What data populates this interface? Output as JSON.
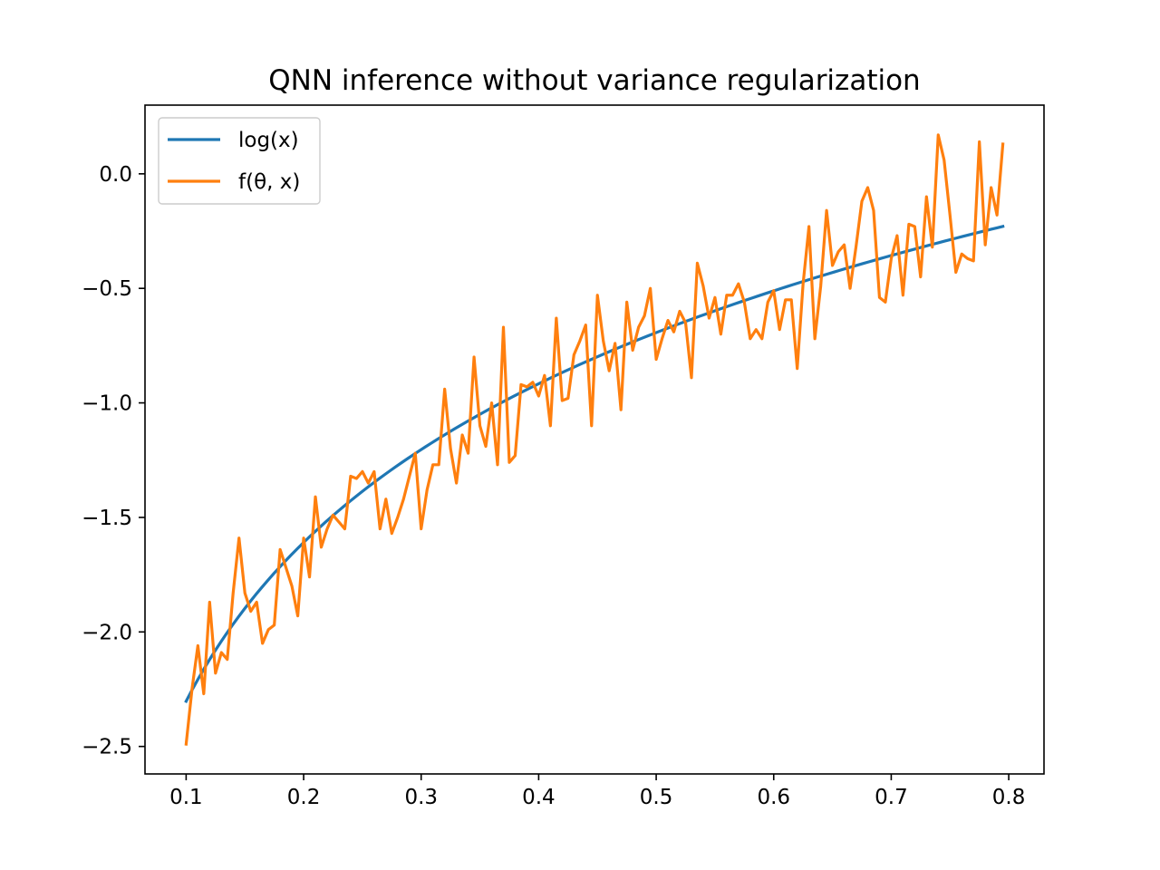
{
  "chart_data": {
    "type": "line",
    "title": "QNN inference without variance regularization",
    "xlabel": "",
    "ylabel": "",
    "xlim": [
      0.065,
      0.83
    ],
    "ylim": [
      -2.62,
      0.3
    ],
    "grid": false,
    "legend_position": "upper-left",
    "x_ticks": [
      {
        "value": 0.1,
        "label": "0.1"
      },
      {
        "value": 0.2,
        "label": "0.2"
      },
      {
        "value": 0.3,
        "label": "0.3"
      },
      {
        "value": 0.4,
        "label": "0.4"
      },
      {
        "value": 0.5,
        "label": "0.5"
      },
      {
        "value": 0.6,
        "label": "0.6"
      },
      {
        "value": 0.7,
        "label": "0.7"
      },
      {
        "value": 0.8,
        "label": "0.8"
      }
    ],
    "y_ticks": [
      {
        "value": 0.0,
        "label": "0.0"
      },
      {
        "value": -0.5,
        "label": "−0.5"
      },
      {
        "value": -1.0,
        "label": "−1.0"
      },
      {
        "value": -1.5,
        "label": "−1.5"
      },
      {
        "value": -2.0,
        "label": "−2.0"
      },
      {
        "value": -2.5,
        "label": "−2.5"
      }
    ],
    "series": [
      {
        "name": "log(x)",
        "color": "#1f77b4",
        "function": "log",
        "x_range": [
          0.1,
          0.795
        ]
      },
      {
        "name": "f(θ, x)",
        "color": "#ff7f0e",
        "x": [
          0.1,
          0.105,
          0.11,
          0.115,
          0.12,
          0.125,
          0.13,
          0.135,
          0.14,
          0.145,
          0.15,
          0.155,
          0.16,
          0.165,
          0.17,
          0.175,
          0.18,
          0.185,
          0.19,
          0.195,
          0.2,
          0.205,
          0.21,
          0.215,
          0.22,
          0.225,
          0.23,
          0.235,
          0.24,
          0.245,
          0.25,
          0.255,
          0.26,
          0.265,
          0.27,
          0.275,
          0.28,
          0.285,
          0.29,
          0.295,
          0.3,
          0.305,
          0.31,
          0.315,
          0.32,
          0.325,
          0.33,
          0.335,
          0.34,
          0.345,
          0.35,
          0.355,
          0.36,
          0.365,
          0.37,
          0.375,
          0.38,
          0.385,
          0.39,
          0.395,
          0.4,
          0.405,
          0.41,
          0.415,
          0.42,
          0.425,
          0.43,
          0.435,
          0.44,
          0.445,
          0.45,
          0.455,
          0.46,
          0.465,
          0.47,
          0.475,
          0.48,
          0.485,
          0.49,
          0.495,
          0.5,
          0.505,
          0.51,
          0.515,
          0.52,
          0.525,
          0.53,
          0.535,
          0.54,
          0.545,
          0.55,
          0.555,
          0.56,
          0.565,
          0.57,
          0.575,
          0.58,
          0.585,
          0.59,
          0.595,
          0.6,
          0.605,
          0.61,
          0.615,
          0.62,
          0.625,
          0.63,
          0.635,
          0.64,
          0.645,
          0.65,
          0.655,
          0.66,
          0.665,
          0.67,
          0.675,
          0.68,
          0.685,
          0.69,
          0.695,
          0.7,
          0.705,
          0.71,
          0.715,
          0.72,
          0.725,
          0.73,
          0.735,
          0.74,
          0.745,
          0.75,
          0.755,
          0.76,
          0.765,
          0.77,
          0.775,
          0.78,
          0.785,
          0.79,
          0.795
        ],
        "y": [
          -2.49,
          -2.25,
          -2.06,
          -2.27,
          -1.87,
          -2.18,
          -2.09,
          -2.12,
          -1.83,
          -1.59,
          -1.83,
          -1.91,
          -1.87,
          -2.05,
          -1.99,
          -1.97,
          -1.64,
          -1.72,
          -1.8,
          -1.93,
          -1.59,
          -1.76,
          -1.41,
          -1.63,
          -1.55,
          -1.49,
          -1.52,
          -1.55,
          -1.32,
          -1.33,
          -1.3,
          -1.35,
          -1.3,
          -1.55,
          -1.42,
          -1.57,
          -1.5,
          -1.42,
          -1.32,
          -1.22,
          -1.55,
          -1.38,
          -1.27,
          -1.27,
          -0.94,
          -1.2,
          -1.35,
          -1.14,
          -1.22,
          -0.8,
          -1.1,
          -1.19,
          -1.0,
          -1.27,
          -0.67,
          -1.26,
          -1.23,
          -0.92,
          -0.93,
          -0.91,
          -0.97,
          -0.88,
          -1.1,
          -0.63,
          -0.99,
          -0.98,
          -0.79,
          -0.73,
          -0.66,
          -1.1,
          -0.53,
          -0.73,
          -0.86,
          -0.74,
          -1.03,
          -0.56,
          -0.77,
          -0.67,
          -0.62,
          -0.5,
          -0.81,
          -0.72,
          -0.64,
          -0.69,
          -0.6,
          -0.65,
          -0.89,
          -0.39,
          -0.49,
          -0.63,
          -0.54,
          -0.7,
          -0.53,
          -0.53,
          -0.48,
          -0.56,
          -0.72,
          -0.68,
          -0.72,
          -0.56,
          -0.51,
          -0.68,
          -0.55,
          -0.55,
          -0.85,
          -0.48,
          -0.23,
          -0.72,
          -0.49,
          -0.16,
          -0.4,
          -0.34,
          -0.31,
          -0.5,
          -0.32,
          -0.12,
          -0.06,
          -0.16,
          -0.54,
          -0.56,
          -0.37,
          -0.27,
          -0.53,
          -0.22,
          -0.23,
          -0.45,
          -0.1,
          -0.32,
          0.17,
          0.06,
          -0.18,
          -0.43,
          -0.35,
          -0.37,
          -0.38,
          0.14,
          -0.31,
          -0.06,
          -0.18,
          0.13
        ]
      }
    ]
  }
}
